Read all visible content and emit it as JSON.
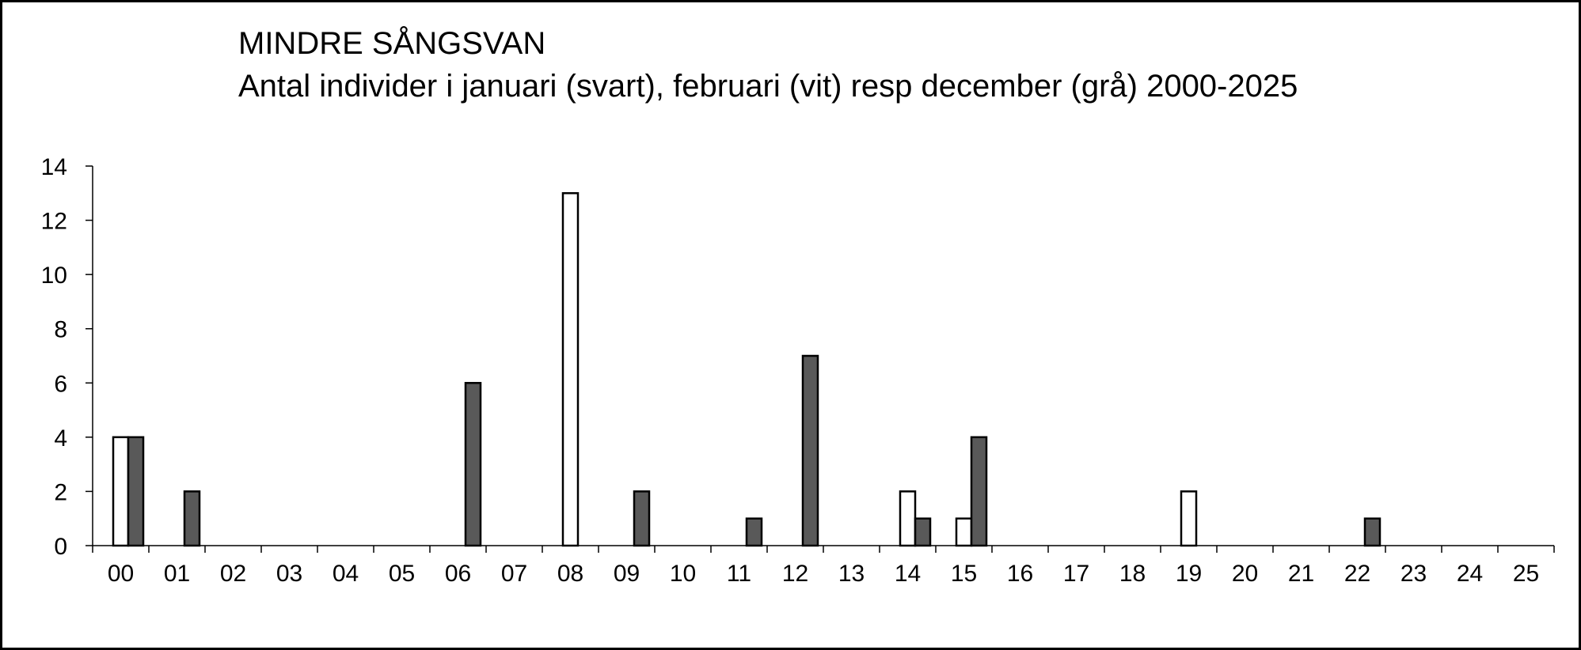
{
  "chart_data": {
    "type": "bar",
    "title": "MINDRE SÅNGSVAN",
    "subtitle": "Antal individer i januari (svart), februari (vit) resp december (grå) 2000-2025",
    "xlabel": "",
    "ylabel": "",
    "categories": [
      "00",
      "01",
      "02",
      "03",
      "04",
      "05",
      "06",
      "07",
      "08",
      "09",
      "10",
      "11",
      "12",
      "13",
      "14",
      "15",
      "16",
      "17",
      "18",
      "19",
      "20",
      "21",
      "22",
      "23",
      "24",
      "25"
    ],
    "ylim": [
      0,
      14
    ],
    "yticks": [
      "0",
      "2",
      "4",
      "6",
      "8",
      "10",
      "12",
      "14"
    ],
    "grid": false,
    "legend": "none",
    "series": [
      {
        "color": "#000000",
        "values": [
          0,
          0,
          0,
          0,
          0,
          0,
          0,
          0,
          0,
          0,
          0,
          0,
          0,
          0,
          0,
          0,
          0,
          0,
          0,
          0,
          0,
          0,
          0,
          0,
          0,
          0
        ]
      },
      {
        "color": "#ffffff",
        "values": [
          4,
          0,
          0,
          0,
          0,
          0,
          0,
          0,
          13,
          0,
          0,
          0,
          0,
          0,
          2,
          1,
          0,
          0,
          0,
          2,
          0,
          0,
          0,
          0,
          0,
          0
        ]
      },
      {
        "color": "#595959",
        "values": [
          4,
          2,
          0,
          0,
          0,
          0,
          6,
          0,
          0,
          2,
          0,
          1,
          7,
          0,
          1,
          4,
          0,
          0,
          0,
          0,
          0,
          0,
          1,
          0,
          0,
          0
        ]
      }
    ]
  }
}
